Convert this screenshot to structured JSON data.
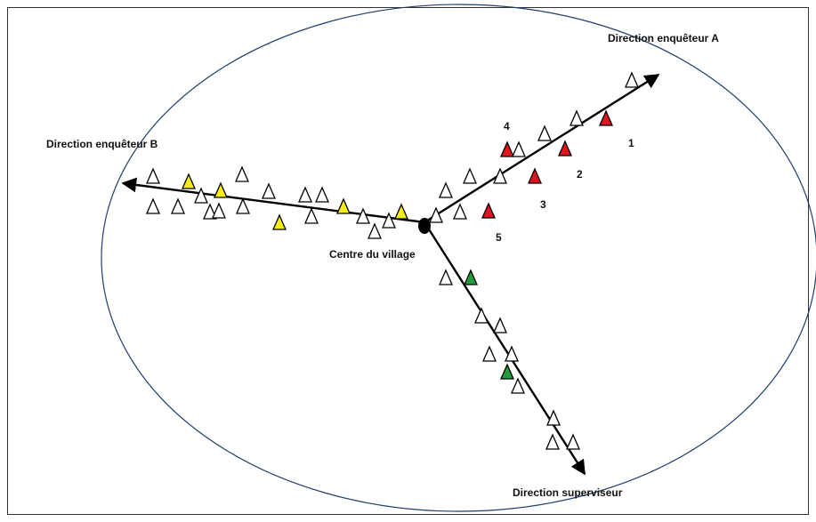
{
  "labels": {
    "direction_a": "Direction  enquêteur A",
    "direction_b": "Direction  enquêteur B",
    "direction_superviseur": "Direction  superviseur",
    "centre": "Centre du village",
    "numbers": [
      "1",
      "2",
      "3",
      "4",
      "5"
    ]
  },
  "colors": {
    "frame": "#333333",
    "ellipse": "#1f3f6e",
    "arrow": "#000000",
    "house_outline": "#000000",
    "house_empty": "#ffffff",
    "house_red": "#e0141e",
    "house_yellow": "#f4ec14",
    "house_green": "#1f9a3c"
  },
  "legend_semantics": {
    "empty_triangle": "house",
    "red_triangle": "house",
    "yellow_triangle": "house",
    "green_triangle": "house"
  }
}
